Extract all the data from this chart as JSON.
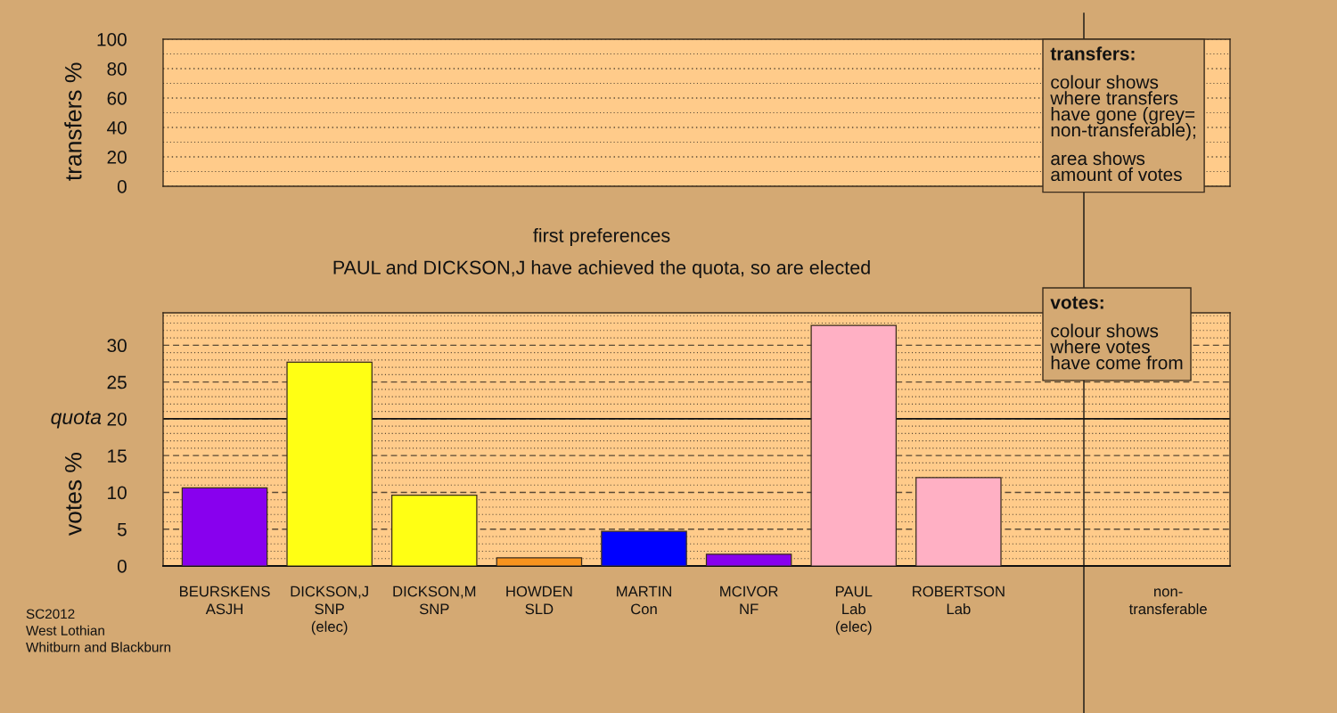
{
  "chart_data": [
    {
      "type": "bar",
      "ylabel": "transfers %",
      "categories": [
        null,
        null,
        null,
        null,
        null,
        null,
        null,
        null,
        null,
        null
      ],
      "values": [
        null,
        null,
        null,
        null,
        null,
        null,
        null,
        null,
        null,
        null
      ],
      "ylim": [
        0,
        100
      ],
      "yticks": [
        0,
        20,
        40,
        60,
        80,
        100
      ],
      "grid": "y",
      "annotations": [
        "transfers:",
        "colour shows\nwhere transfers\nhave gone (grey=\nnon-transferable);",
        "area shows\namount of votes"
      ]
    },
    {
      "type": "bar",
      "title": "first preferences",
      "subtitle": "PAUL and DICKSON,J have achieved the quota, so are elected",
      "ylabel": "votes %",
      "categories": [
        "BEURSKENS\nASJH",
        "DICKSON,J\nSNP\n(elec)",
        "DICKSON,M\nSNP",
        "HOWDEN\nSLD",
        "MARTIN\nCon",
        "MCIVOR\nNF",
        "PAUL\nLab\n(elec)",
        "ROBERTSON\nLab",
        null,
        "non-\ntransferable"
      ],
      "values": [
        10.6,
        27.7,
        9.6,
        1.1,
        4.7,
        1.6,
        32.7,
        12.0,
        null,
        null
      ],
      "colors": [
        "#8800ee",
        "#ffff14",
        "#ffff14",
        "#f7931e",
        "#0000ff",
        "#8800ee",
        "#ffb0c4",
        "#ffb0c4",
        null,
        null
      ],
      "ylim": [
        0,
        34.4
      ],
      "yticks": [
        0,
        5,
        10,
        15,
        20,
        25,
        30
      ],
      "grid": "y",
      "ref_lines": [
        {
          "axis": "y",
          "value": 20,
          "label": "quota"
        }
      ],
      "annotations": [
        "votes:",
        "colour shows\nwhere votes\nhave come from",
        "SC2012\nWest Lothian\nWhitburn and Blackburn"
      ]
    }
  ]
}
